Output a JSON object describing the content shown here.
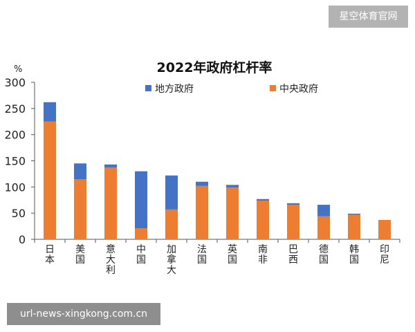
{
  "watermark_top": "星空体育官网",
  "watermark_bottom": "url-news-xingkong.com.cn",
  "chart_data": {
    "type": "bar",
    "stacked": true,
    "title": "2022年政府杠杆率",
    "unit_label": "%",
    "ylim": [
      0,
      300
    ],
    "yticks": [
      0,
      50,
      100,
      150,
      200,
      250,
      300
    ],
    "grid": false,
    "legend_position": "top-center",
    "categories": [
      "日本",
      "美国",
      "意大利",
      "中国",
      "加拿大",
      "法国",
      "英国",
      "南非",
      "巴西",
      "德国",
      "韩国",
      "印尼"
    ],
    "series": [
      {
        "name": "中央政府",
        "color": "#ED7D31",
        "values": [
          225,
          115,
          137,
          21,
          57,
          102,
          99,
          74,
          66,
          44,
          47,
          37
        ]
      },
      {
        "name": "地方政府",
        "color": "#4472C4",
        "values": [
          37,
          30,
          6,
          109,
          65,
          8,
          5,
          3,
          3,
          22,
          2,
          0
        ]
      }
    ]
  }
}
